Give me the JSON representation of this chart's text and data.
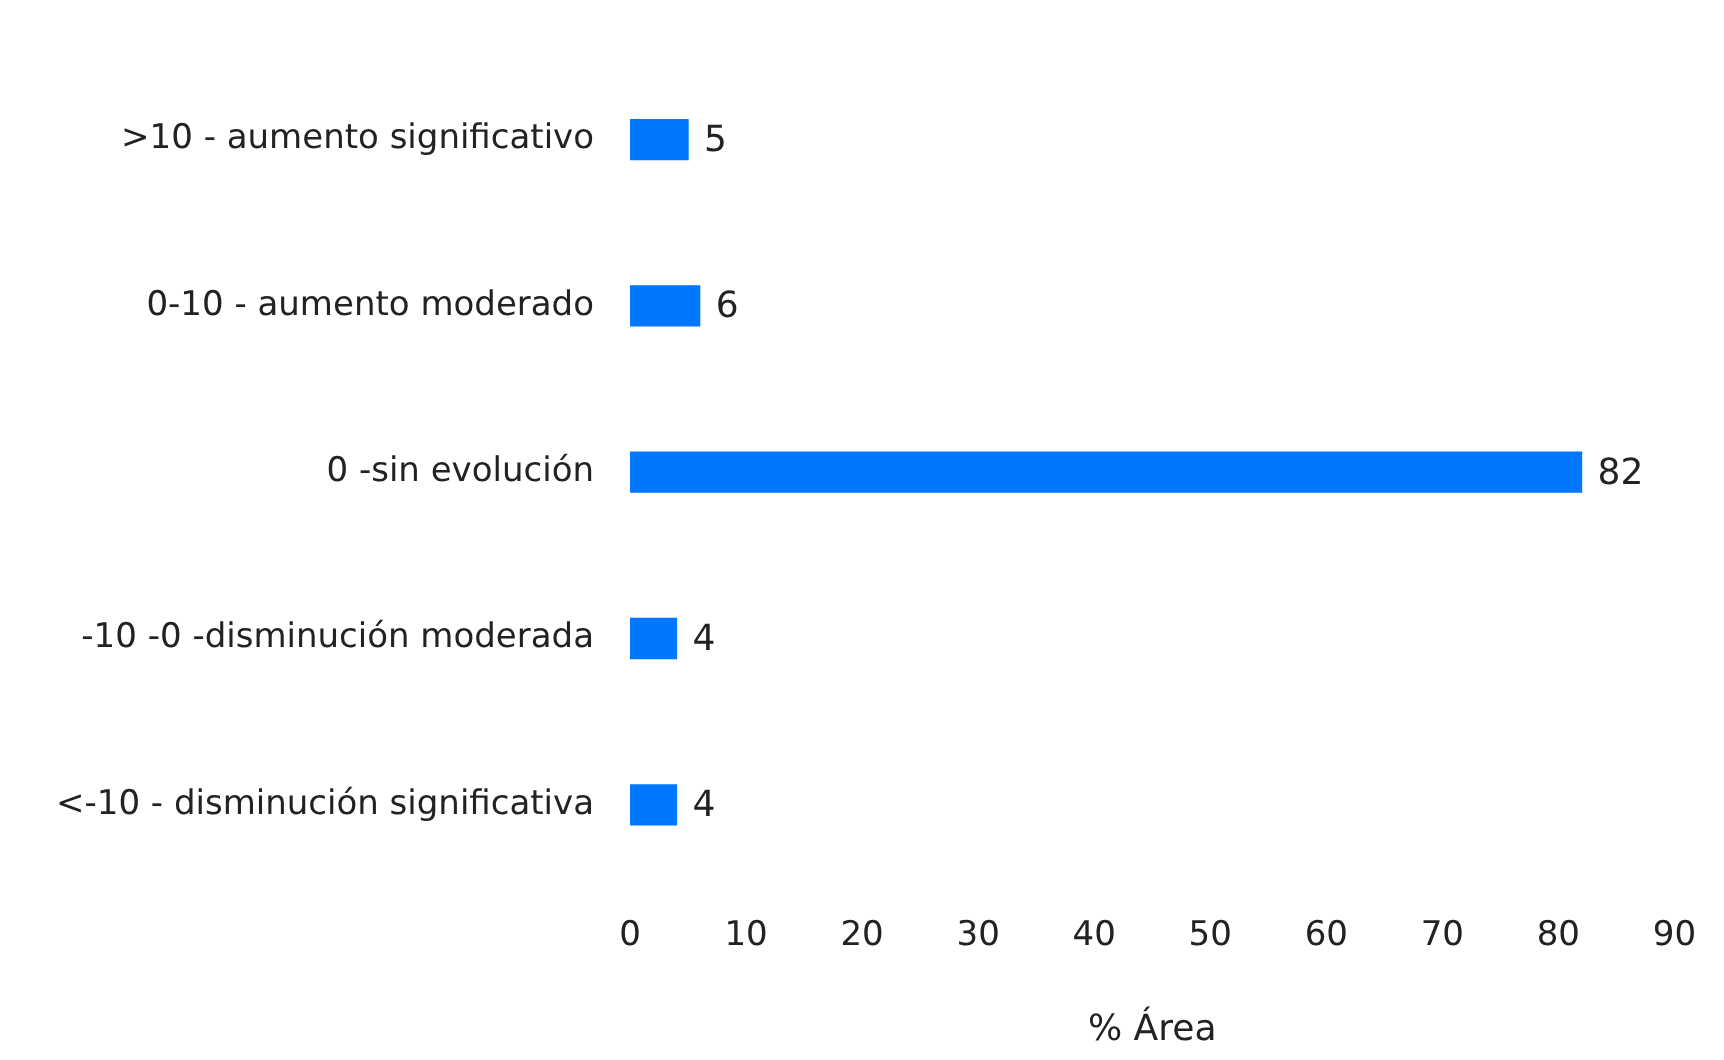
{
  "chart_data": {
    "type": "bar",
    "orientation": "horizontal",
    "xlabel": "% Área",
    "categories": [
      ">10 - aumento significativo",
      "0-10 - aumento moderado",
      "0 -sin evolución",
      "-10 -0 -disminución moderada",
      "<-10 - disminución significativa"
    ],
    "values": [
      5,
      6,
      82,
      4,
      4
    ],
    "color": "#0077ff",
    "data_labels": true,
    "grid": false,
    "legend": false,
    "xlim": [
      0,
      90
    ],
    "xticks": [
      0,
      10,
      20,
      30,
      40,
      50,
      60,
      70,
      80,
      90
    ]
  }
}
